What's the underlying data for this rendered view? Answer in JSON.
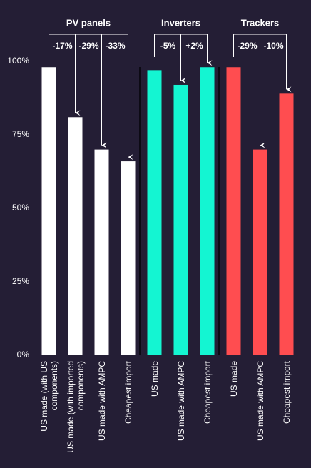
{
  "chart_data": {
    "type": "bar",
    "ylim": [
      0,
      100
    ],
    "yticks": [
      {
        "value": 0,
        "label": "0%"
      },
      {
        "value": 25,
        "label": "25%"
      },
      {
        "value": 50,
        "label": "50%"
      },
      {
        "value": 75,
        "label": "75%"
      },
      {
        "value": 100,
        "label": "100%"
      }
    ],
    "groups": [
      {
        "name": "PV panels",
        "color": "#ffffff",
        "categories": [
          "US made (with US components)",
          "US made (with imported components)",
          "US made with AMPC",
          "Cheapest import"
        ],
        "values": [
          98,
          81,
          70,
          66
        ],
        "change_labels": [
          null,
          "-17%",
          "-29%",
          "-33%"
        ]
      },
      {
        "name": "Inverters",
        "color": "#14f5d2",
        "categories": [
          "US made",
          "US made with AMPC",
          "Cheapest import"
        ],
        "values": [
          97,
          92,
          98
        ],
        "change_labels": [
          null,
          "-5%",
          "+2%"
        ]
      },
      {
        "name": "Trackers",
        "color": "#ff4d50",
        "categories": [
          "US made",
          "US made with AMPC",
          "Cheapest import"
        ],
        "values": [
          98,
          70,
          89
        ],
        "change_labels": [
          null,
          "-29%",
          "-10%"
        ]
      }
    ]
  }
}
